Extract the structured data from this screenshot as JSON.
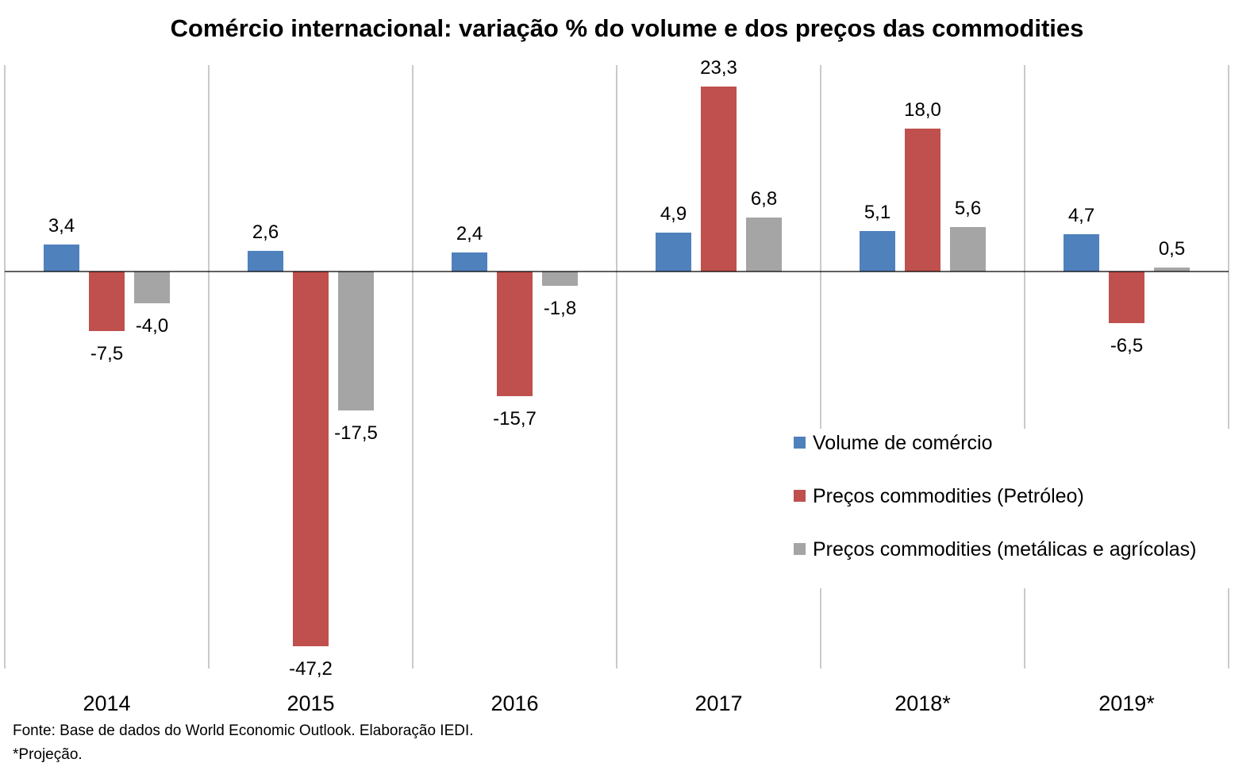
{
  "chart_data": {
    "type": "bar",
    "title": "Comércio internacional: variação % do volume e dos preços das commodities",
    "categories": [
      "2014",
      "2015",
      "2016",
      "2017",
      "2018*",
      "2019*"
    ],
    "series": [
      {
        "name": "Volume de comércio",
        "color": "#4f81bd",
        "values": [
          3.4,
          2.6,
          2.4,
          4.9,
          5.1,
          4.7
        ],
        "labels": [
          "3,4",
          "2,6",
          "2,4",
          "4,9",
          "5,1",
          "4,7"
        ]
      },
      {
        "name": "Preços commodities (Petróleo)",
        "color": "#c0504d",
        "values": [
          -7.5,
          -47.2,
          -15.7,
          23.3,
          18.0,
          -6.5
        ],
        "labels": [
          "-7,5",
          "-47,2",
          "-15,7",
          "23,3",
          "18,0",
          "-6,5"
        ]
      },
      {
        "name": "Preços commodities (metálicas e agrícolas)",
        "color": "#a5a5a5",
        "values": [
          -4.0,
          -17.5,
          -1.8,
          6.8,
          5.6,
          0.5
        ],
        "labels": [
          "-4,0",
          "-17,5",
          "-1,8",
          "6,8",
          "5,6",
          "0,5"
        ]
      }
    ],
    "ylim": [
      -50,
      26
    ],
    "legend_position": "right",
    "grid": false
  },
  "notes": {
    "source": "Fonte: Base de dados do World Economic Outlook. Elaboração IEDI.",
    "projection": "*Projeção."
  }
}
